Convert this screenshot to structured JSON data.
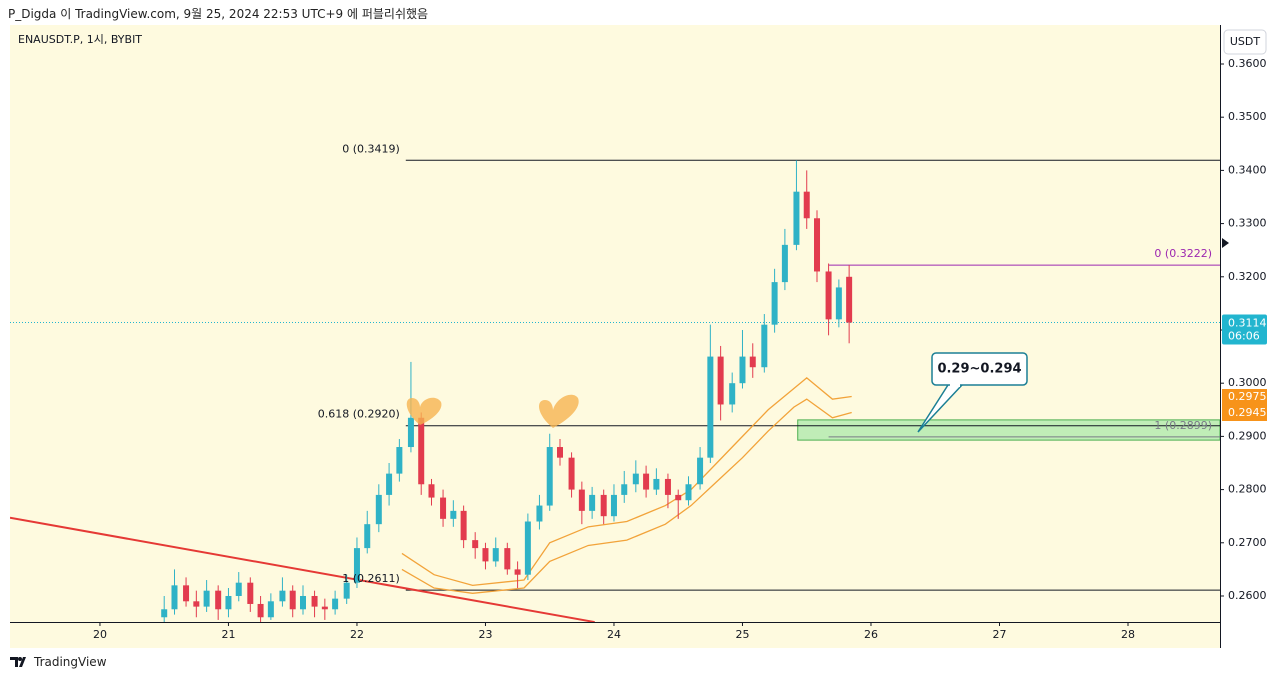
{
  "header": {
    "publisher": "P_Digda 이 TradingView.com, 9월 25, 2024 22:53 UTC+9 에 퍼블리쉬했음",
    "symbol": "ENAUSDT.P, 1시, BYBIT",
    "currency": "USDT",
    "brand": "TradingView"
  },
  "chart_data": {
    "type": "candlestick",
    "up_color": "#2fb2c6",
    "down_color": "#e23b4e",
    "x": [
      20.5,
      20.58,
      20.67,
      20.75,
      20.83,
      20.92,
      21.0,
      21.08,
      21.17,
      21.25,
      21.33,
      21.42,
      21.5,
      21.58,
      21.67,
      21.75,
      21.83,
      21.92,
      22.0,
      22.08,
      22.17,
      22.25,
      22.33,
      22.42,
      22.5,
      22.58,
      22.67,
      22.75,
      22.83,
      22.92,
      23.0,
      23.08,
      23.17,
      23.25,
      23.33,
      23.42,
      23.5,
      23.58,
      23.67,
      23.75,
      23.83,
      23.92,
      24.0,
      24.08,
      24.17,
      24.25,
      24.33,
      24.42,
      24.5,
      24.58,
      24.67,
      24.75,
      24.83,
      24.92,
      25.0,
      25.08,
      25.17,
      25.25,
      25.33,
      25.42,
      25.5,
      25.58,
      25.67,
      25.75,
      25.83
    ],
    "open": [
      0.256,
      0.2575,
      0.262,
      0.259,
      0.258,
      0.261,
      0.2575,
      0.26,
      0.2625,
      0.2585,
      0.256,
      0.259,
      0.261,
      0.2575,
      0.26,
      0.258,
      0.2575,
      0.2595,
      0.2625,
      0.269,
      0.2735,
      0.279,
      0.283,
      0.288,
      0.2935,
      0.281,
      0.2785,
      0.2745,
      0.276,
      0.2705,
      0.269,
      0.2665,
      0.269,
      0.265,
      0.264,
      0.274,
      0.277,
      0.288,
      0.286,
      0.28,
      0.276,
      0.279,
      0.275,
      0.279,
      0.281,
      0.283,
      0.28,
      0.282,
      0.279,
      0.278,
      0.281,
      0.286,
      0.305,
      0.296,
      0.3,
      0.305,
      0.303,
      0.311,
      0.319,
      0.326,
      0.336,
      0.331,
      0.321,
      0.312,
      0.32
    ],
    "high": [
      0.26,
      0.265,
      0.2635,
      0.261,
      0.263,
      0.262,
      0.2615,
      0.2645,
      0.2635,
      0.26,
      0.2605,
      0.2635,
      0.262,
      0.262,
      0.261,
      0.2595,
      0.261,
      0.264,
      0.271,
      0.276,
      0.281,
      0.285,
      0.2895,
      0.304,
      0.2945,
      0.282,
      0.28,
      0.278,
      0.277,
      0.272,
      0.27,
      0.271,
      0.27,
      0.2665,
      0.2755,
      0.279,
      0.2905,
      0.2895,
      0.287,
      0.2815,
      0.2805,
      0.28,
      0.281,
      0.2835,
      0.2855,
      0.2845,
      0.284,
      0.283,
      0.28,
      0.2825,
      0.288,
      0.311,
      0.307,
      0.302,
      0.31,
      0.3075,
      0.313,
      0.3215,
      0.329,
      0.3419,
      0.34,
      0.3325,
      0.3225,
      0.3195,
      0.3222
    ],
    "low": [
      0.255,
      0.2565,
      0.258,
      0.256,
      0.257,
      0.2555,
      0.256,
      0.259,
      0.257,
      0.255,
      0.2555,
      0.258,
      0.256,
      0.2565,
      0.256,
      0.2555,
      0.2565,
      0.2585,
      0.2615,
      0.268,
      0.272,
      0.277,
      0.2815,
      0.287,
      0.279,
      0.277,
      0.273,
      0.273,
      0.269,
      0.267,
      0.265,
      0.2655,
      0.264,
      0.2615,
      0.263,
      0.2725,
      0.276,
      0.2845,
      0.2785,
      0.2735,
      0.2745,
      0.2735,
      0.274,
      0.2775,
      0.2795,
      0.2785,
      0.279,
      0.2765,
      0.2745,
      0.277,
      0.28,
      0.285,
      0.293,
      0.2945,
      0.299,
      0.301,
      0.302,
      0.3095,
      0.3175,
      0.325,
      0.329,
      0.319,
      0.309,
      0.3105,
      0.3075
    ],
    "close": [
      0.2575,
      0.262,
      0.259,
      0.258,
      0.261,
      0.2575,
      0.26,
      0.2625,
      0.2585,
      0.256,
      0.259,
      0.261,
      0.2575,
      0.26,
      0.258,
      0.2575,
      0.2595,
      0.2625,
      0.269,
      0.2735,
      0.279,
      0.283,
      0.288,
      0.2935,
      0.281,
      0.2785,
      0.2745,
      0.276,
      0.2705,
      0.269,
      0.2665,
      0.269,
      0.265,
      0.264,
      0.274,
      0.277,
      0.288,
      0.286,
      0.28,
      0.276,
      0.279,
      0.275,
      0.279,
      0.281,
      0.283,
      0.28,
      0.282,
      0.279,
      0.278,
      0.281,
      0.286,
      0.305,
      0.296,
      0.3,
      0.305,
      0.303,
      0.311,
      0.319,
      0.326,
      0.336,
      0.331,
      0.321,
      0.312,
      0.318,
      0.3114
    ],
    "xlim": [
      19.3,
      28.716
    ],
    "ylim": [
      0.25511,
      0.36733
    ],
    "xticks": [
      20,
      21,
      22,
      23,
      24,
      25,
      26,
      27,
      28
    ],
    "yticks": [
      {
        "value": 0.26,
        "label": "0.2600"
      },
      {
        "value": 0.27,
        "label": "0.2700"
      },
      {
        "value": 0.28,
        "label": "0.2800"
      },
      {
        "value": 0.29,
        "label": "0.2900"
      },
      {
        "value": 0.3,
        "label": "0.3000"
      },
      {
        "value": 0.31,
        "label": "0.3100"
      },
      {
        "value": 0.32,
        "label": "0.3200"
      },
      {
        "value": 0.33,
        "label": "0.3300"
      },
      {
        "value": 0.34,
        "label": "0.3400"
      },
      {
        "value": 0.35,
        "label": "0.3500"
      },
      {
        "value": 0.36,
        "label": "0.3600"
      }
    ],
    "bands": [
      {
        "color": "#f2a33a",
        "x": [
          22.35,
          22.6,
          22.9,
          23.3,
          23.5,
          23.8,
          24.1,
          24.4,
          24.6,
          24.8,
          25.0,
          25.2,
          25.4,
          25.5,
          25.7,
          25.85
        ],
        "values": [
          0.268,
          0.264,
          0.262,
          0.263,
          0.27,
          0.273,
          0.274,
          0.277,
          0.28,
          0.285,
          0.29,
          0.295,
          0.299,
          0.301,
          0.297,
          0.2975
        ]
      },
      {
        "color": "#f2a33a",
        "x": [
          22.35,
          22.6,
          22.9,
          23.3,
          23.5,
          23.8,
          24.1,
          24.4,
          24.6,
          24.8,
          25.0,
          25.2,
          25.4,
          25.5,
          25.7,
          25.85
        ],
        "values": [
          0.265,
          0.2615,
          0.2605,
          0.2615,
          0.2665,
          0.2695,
          0.2705,
          0.2735,
          0.277,
          0.2815,
          0.286,
          0.291,
          0.2955,
          0.297,
          0.2935,
          0.2945
        ]
      }
    ],
    "levels": [
      {
        "label": "0 (0.3419)",
        "value": 0.3419,
        "x_start": 22.38,
        "color": "#131722",
        "label_side": "left"
      },
      {
        "label": "0.618 (0.2920)",
        "value": 0.292,
        "x_start": 22.38,
        "color": "#131722",
        "label_side": "left"
      },
      {
        "label": "1 (0.2611)",
        "value": 0.2611,
        "x_start": 22.38,
        "color": "#131722",
        "label_side": "left"
      },
      {
        "label": "0 (0.3222)",
        "value": 0.3222,
        "x_start": 25.67,
        "color": "#9c27b0",
        "label_side": "right"
      },
      {
        "label": "1 (0.2899)",
        "value": 0.2899,
        "x_start": 25.67,
        "color": "#787b86",
        "label_side": "right"
      }
    ],
    "zone": {
      "label": "0.29~0.294",
      "ylim": [
        0.2893,
        0.2931
      ],
      "x_start": 25.43,
      "color": "#4caf50"
    },
    "trendline": {
      "x": [
        19.3,
        23.85
      ],
      "values": [
        0.2747,
        0.2551
      ],
      "color": "#e53935"
    },
    "last_price": {
      "value": 0.3114,
      "countdown": "06:06",
      "color": "#22b5cf"
    }
  }
}
